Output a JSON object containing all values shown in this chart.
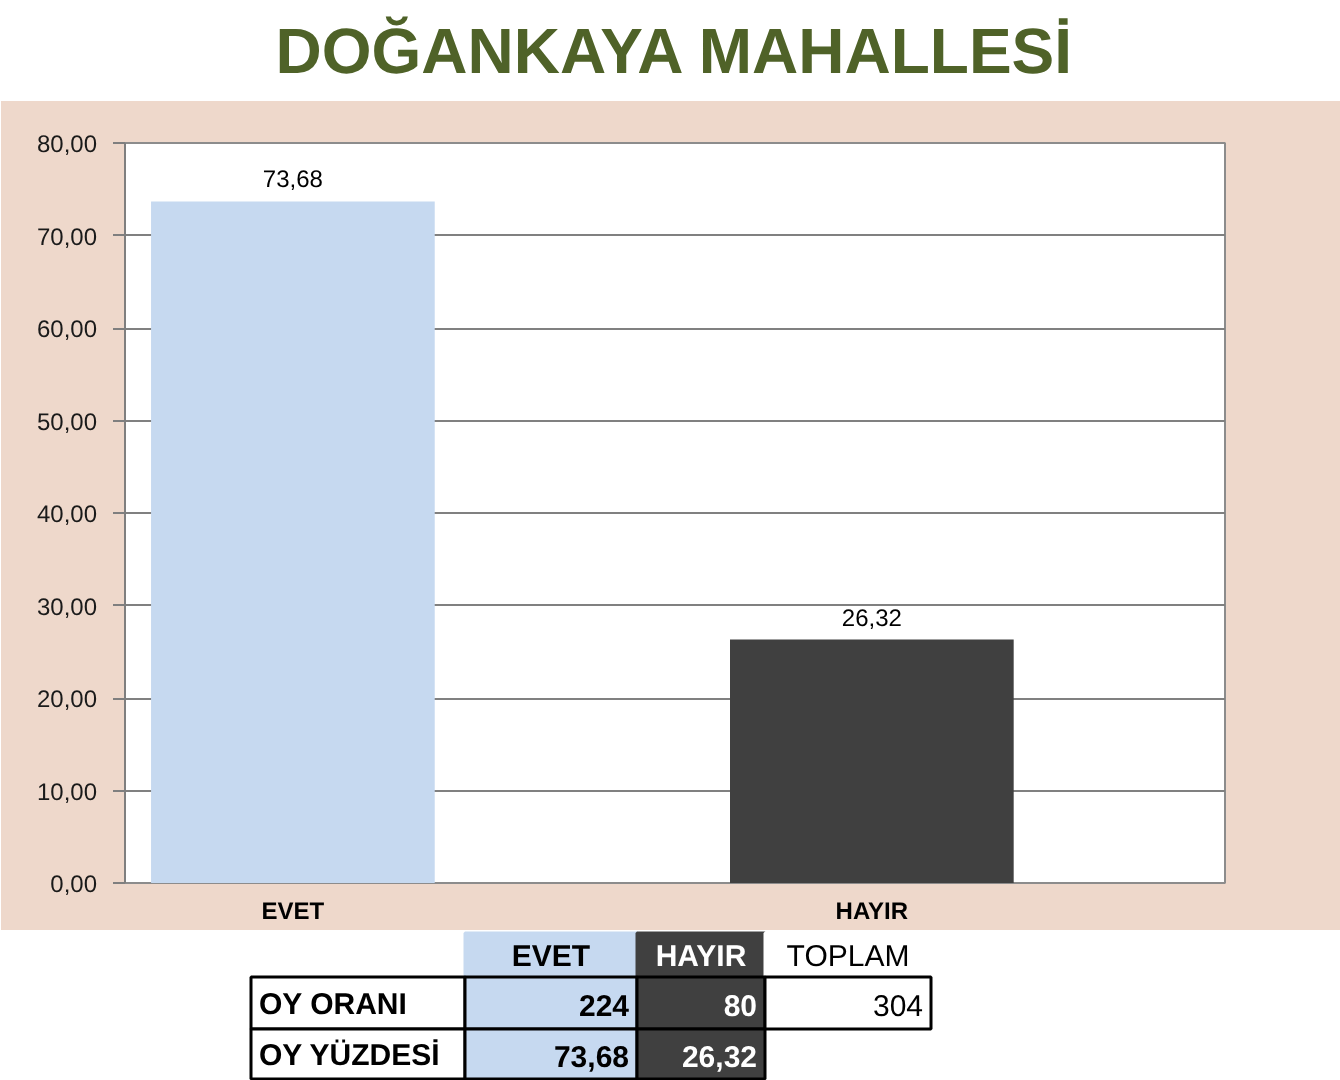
{
  "chart_data": {
    "type": "bar",
    "title": "DOĞANKAYA MAHALLESİ",
    "categories": [
      "EVET",
      "HAYIR"
    ],
    "values": [
      73.68,
      26.32
    ],
    "colors": [
      "#c6d9f0",
      "#404040"
    ],
    "value_labels": [
      "73,68",
      "26,32"
    ],
    "ylim": [
      0,
      80
    ],
    "yticks": [
      {
        "value": 0,
        "label": "0,00"
      },
      {
        "value": 10,
        "label": "10,00"
      },
      {
        "value": 20,
        "label": "20,00"
      },
      {
        "value": 30,
        "label": "30,00"
      },
      {
        "value": 40,
        "label": "40,00"
      },
      {
        "value": 50,
        "label": "50,00"
      },
      {
        "value": 60,
        "label": "60,00"
      },
      {
        "value": 70,
        "label": "70,00"
      },
      {
        "value": 80,
        "label": "80,00"
      }
    ],
    "grid": "y",
    "annotations": [
      "EVET",
      "HAYIR",
      "TOPLAM",
      "OY ORANI",
      "224",
      "80",
      "304",
      "OY YÜZDESİ",
      "73,68",
      "26,32"
    ]
  }
}
